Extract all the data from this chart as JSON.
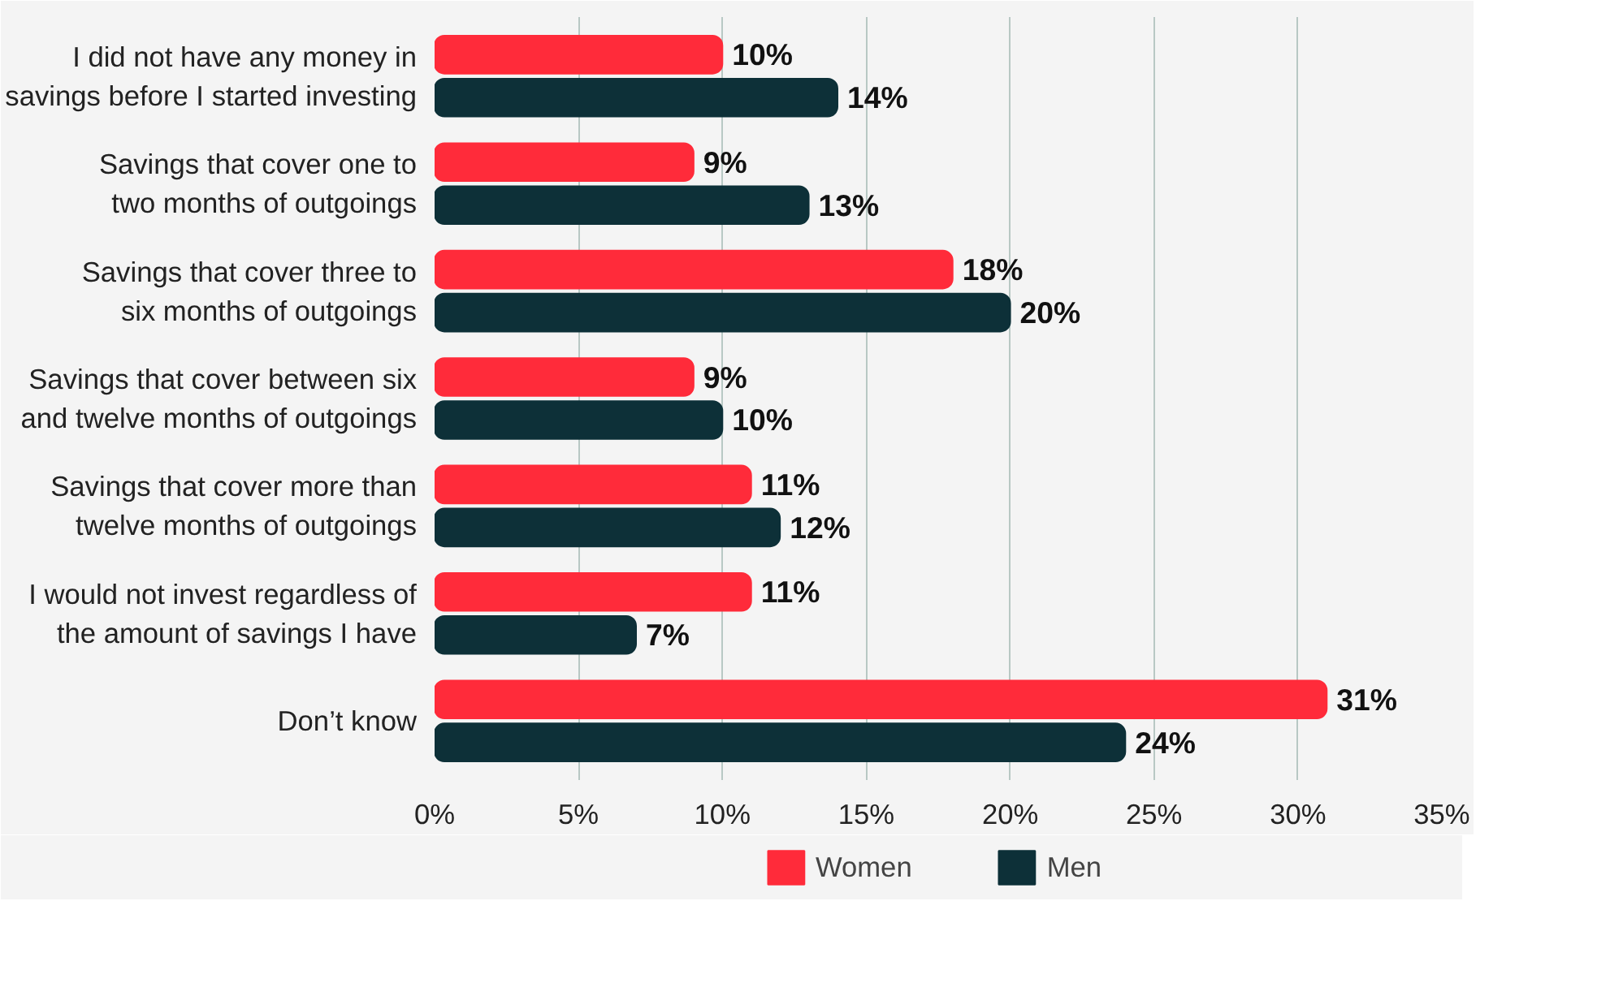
{
  "chart_data": {
    "type": "bar",
    "orientation": "horizontal",
    "categories": [
      "I did not have any money in\nsavings before I started investing",
      "Savings that cover one to\ntwo months of outgoings",
      "Savings that cover three to\nsix months of outgoings",
      "Savings that cover between six\nand twelve months of outgoings",
      "Savings that cover more than\ntwelve months of outgoings",
      "I would not invest regardless of\nthe amount of savings I have",
      "Don’t know"
    ],
    "series": [
      {
        "name": "Women",
        "color": "#ff2b3a",
        "values": [
          10,
          9,
          18,
          9,
          11,
          11,
          31
        ],
        "value_labels": [
          "10%",
          "9%",
          "18%",
          "9%",
          "11%",
          "11%",
          "31%"
        ]
      },
      {
        "name": "Men",
        "color": "#0d3038",
        "values": [
          14,
          13,
          20,
          10,
          12,
          7,
          24
        ],
        "value_labels": [
          "14%",
          "13%",
          "20%",
          "10%",
          "12%",
          "7%",
          "24%"
        ]
      }
    ],
    "xlim": [
      0,
      35
    ],
    "xticks": [
      {
        "value": 0,
        "label": "0%"
      },
      {
        "value": 5,
        "label": "5%"
      },
      {
        "value": 10,
        "label": "10%"
      },
      {
        "value": 15,
        "label": "15%"
      },
      {
        "value": 20,
        "label": "20%"
      },
      {
        "value": 25,
        "label": "25%"
      },
      {
        "value": 30,
        "label": "30%"
      },
      {
        "value": 35,
        "label": "35%"
      }
    ],
    "grid": "x",
    "legend": "bottom"
  }
}
